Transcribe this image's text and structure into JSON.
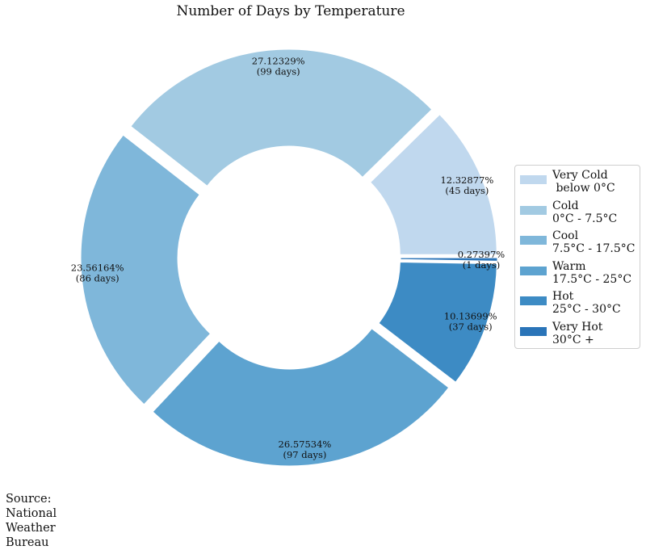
{
  "chart_data": {
    "type": "pie",
    "title": "Number of Days by Temperature",
    "categories": [
      "Very Cold",
      "Cold",
      "Cool",
      "Warm",
      "Hot",
      "Very Hot"
    ],
    "legend_labels": [
      "Very Cold\n below 0°C",
      "Cold\n0°C - 7.5°C",
      "Cool\n7.5°C - 17.5°C",
      "Warm\n17.5°C - 25°C",
      "Hot\n25°C - 30°C",
      "Very Hot\n30°C +"
    ],
    "values": [
      45,
      99,
      86,
      97,
      37,
      1
    ],
    "percent_labels": [
      "12.32877%",
      "27.12329%",
      "23.56164%",
      "26.57534%",
      "10.13699%",
      "0.27397%"
    ],
    "day_labels": [
      "(45 days)",
      "(99 days)",
      "(86 days)",
      "(97 days)",
      "(37 days)",
      "(1 days)"
    ],
    "colors": [
      "#c0d8ee",
      "#a2cae2",
      "#7fb7da",
      "#5da3d0",
      "#3d8bc4",
      "#2a74b8"
    ],
    "donut": true,
    "legend_position": "right",
    "source": "Source:\nNational\nWeather\nBureau"
  }
}
